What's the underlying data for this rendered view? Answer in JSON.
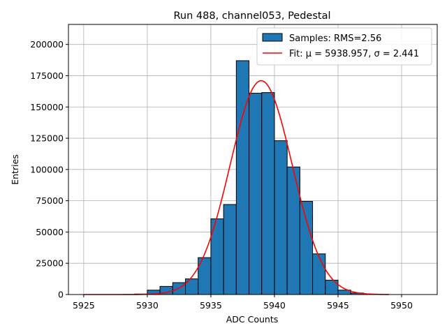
{
  "chart_data": {
    "type": "bar",
    "title": "Run 488, channel053, Pedestal",
    "xlabel": "ADC Counts",
    "ylabel": "Entries",
    "xlim": [
      5923.8,
      5952.8
    ],
    "ylim": [
      0,
      216000
    ],
    "xticks": [
      5925,
      5930,
      5935,
      5940,
      5945,
      5950
    ],
    "yticks": [
      0,
      25000,
      50000,
      75000,
      100000,
      125000,
      150000,
      175000,
      200000
    ],
    "grid": true,
    "legend_position": "top-right",
    "histogram": {
      "name": "Samples: RMS=2.56",
      "color": "#1f77b4",
      "bins": [
        {
          "x0": 5929,
          "x1": 5930,
          "count": 400
        },
        {
          "x0": 5930,
          "x1": 5931,
          "count": 3500
        },
        {
          "x0": 5931,
          "x1": 5932,
          "count": 6500
        },
        {
          "x0": 5932,
          "x1": 5933,
          "count": 9500
        },
        {
          "x0": 5933,
          "x1": 5934,
          "count": 12500
        },
        {
          "x0": 5934,
          "x1": 5935,
          "count": 29500
        },
        {
          "x0": 5935,
          "x1": 5936,
          "count": 60500
        },
        {
          "x0": 5936,
          "x1": 5937,
          "count": 72000
        },
        {
          "x0": 5937,
          "x1": 5938,
          "count": 187000
        },
        {
          "x0": 5938,
          "x1": 5939,
          "count": 161000
        },
        {
          "x0": 5939,
          "x1": 5940,
          "count": 161500
        },
        {
          "x0": 5940,
          "x1": 5941,
          "count": 123000
        },
        {
          "x0": 5941,
          "x1": 5942,
          "count": 102000
        },
        {
          "x0": 5942,
          "x1": 5943,
          "count": 74500
        },
        {
          "x0": 5943,
          "x1": 5944,
          "count": 32500
        },
        {
          "x0": 5944,
          "x1": 5945,
          "count": 11500
        },
        {
          "x0": 5945,
          "x1": 5946,
          "count": 3500
        },
        {
          "x0": 5946,
          "x1": 5947,
          "count": 1200
        },
        {
          "x0": 5947,
          "x1": 5948,
          "count": 300
        }
      ]
    },
    "fit": {
      "name": "Fit: μ = 5938.957, σ = 2.441",
      "color": "#ff0000",
      "mu": 5938.957,
      "sigma": 2.441,
      "amplitude": 171000,
      "x_range": [
        5925,
        5949
      ]
    }
  }
}
